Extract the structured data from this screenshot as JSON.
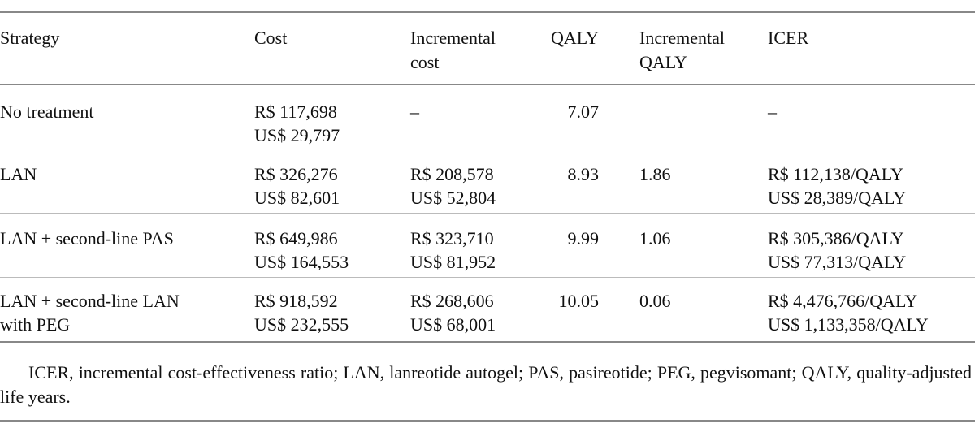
{
  "table": {
    "header": [
      [
        "Strategy"
      ],
      [
        "Cost"
      ],
      [
        "Incremental",
        "cost"
      ],
      [
        "QALY"
      ],
      [
        "Incremental",
        "QALY"
      ],
      [
        "ICER"
      ]
    ],
    "rows": [
      [
        [
          "No treatment"
        ],
        [
          "R$ 117,698",
          "US$ 29,797"
        ],
        [
          "–"
        ],
        [
          "7.07"
        ],
        null,
        [
          "–"
        ]
      ],
      [
        [
          "LAN"
        ],
        [
          "R$ 326,276",
          "US$ 82,601"
        ],
        [
          "R$ 208,578",
          "US$ 52,804"
        ],
        [
          "8.93"
        ],
        [
          "1.86"
        ],
        [
          "R$ 112,138/QALY",
          "US$ 28,389/QALY"
        ]
      ],
      [
        [
          "LAN + second-line PAS"
        ],
        [
          "R$ 649,986",
          "US$ 164,553"
        ],
        [
          "R$ 323,710",
          "US$ 81,952"
        ],
        [
          "9.99"
        ],
        [
          "1.06"
        ],
        [
          "R$ 305,386/QALY",
          "US$ 77,313/QALY"
        ]
      ],
      [
        [
          "LAN + second-line LAN",
          "with PEG"
        ],
        [
          "R$ 918,592",
          "US$ 232,555"
        ],
        [
          "R$ 268,606",
          "US$ 68,001"
        ],
        [
          "10.05"
        ],
        [
          "0.06"
        ],
        [
          "R$ 4,476,766/QALY",
          "US$ 1,133,358/QALY"
        ]
      ]
    ]
  },
  "footnote": "ICER, incremental cost-effectiveness ratio; LAN, lanreotide autogel; PAS, pasireotide; PEG, pegvisomant; QALY, quality-adjusted life years."
}
